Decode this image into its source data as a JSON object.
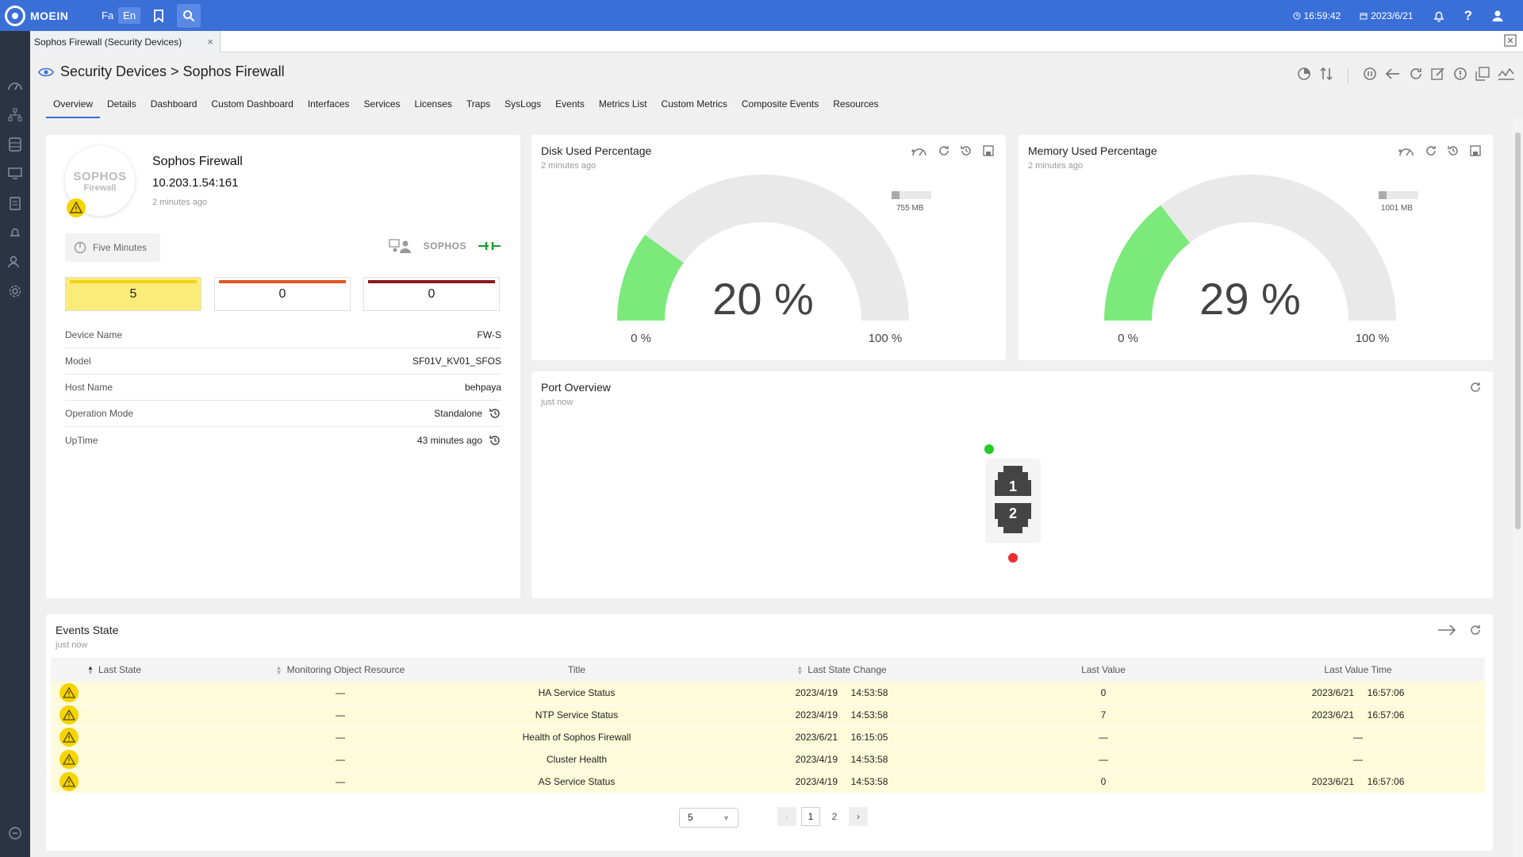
{
  "topbar": {
    "logo_text": "MOEIN",
    "lang_fa": "Fa",
    "lang_en": "En",
    "time": "16:59:42",
    "date": "2023/6/21"
  },
  "tabstrip": {
    "open_tab": "Sophos Firewall (Security Devices)"
  },
  "header": {
    "breadcrumb": "Security Devices > Sophos Firewall",
    "tabs": [
      "Overview",
      "Details",
      "Dashboard",
      "Custom Dashboard",
      "Interfaces",
      "Services",
      "Licenses",
      "Traps",
      "SysLogs",
      "Events",
      "Metrics List",
      "Custom Metrics",
      "Composite Events",
      "Resources"
    ],
    "active_tab": "Overview"
  },
  "device": {
    "logo_line1": "SOPHOS",
    "logo_line2": "Firewall",
    "name": "Sophos Firewall",
    "address": "10.203.1.54:161",
    "updated": "2 minutes ago",
    "interval": "Five Minutes",
    "vendor": "SOPHOS",
    "counters": [
      {
        "value": "5",
        "bar_color": "#f2d21a",
        "bg": "#fbeb79"
      },
      {
        "value": "0",
        "bar_color": "#e0561f",
        "bg": "#ffffff"
      },
      {
        "value": "0",
        "bar_color": "#8b1a1a",
        "bg": "#ffffff"
      }
    ],
    "properties": [
      {
        "label": "Device Name",
        "value": "FW-S"
      },
      {
        "label": "Model",
        "value": "SF01V_KV01_SFOS"
      },
      {
        "label": "Host Name",
        "value": "behpaya"
      },
      {
        "label": "Operation Mode",
        "value": "Standalone"
      },
      {
        "label": "UpTime",
        "value": "43 minutes ago"
      }
    ]
  },
  "disk": {
    "title": "Disk Used Percentage",
    "updated": "2 minutes ago",
    "value": 20,
    "value_text": "20 %",
    "min_text": "0 %",
    "max_text": "100 %",
    "legend": "755 MB",
    "legend_fill": 0.2
  },
  "memory": {
    "title": "Memory Used Percentage",
    "updated": "2 minutes ago",
    "value": 29,
    "value_text": "29 %",
    "min_text": "0 %",
    "max_text": "100 %",
    "legend": "1001 MB",
    "legend_fill": 0.2
  },
  "ports": {
    "title": "Port Overview",
    "updated": "just now",
    "port1": "1",
    "port2": "2"
  },
  "events": {
    "title": "Events State",
    "updated": "just now",
    "columns": [
      "Last State",
      "Monitoring Object Resource",
      "Title",
      "Last State Change",
      "Last Value",
      "Last Value Time"
    ],
    "rows": [
      {
        "resource": "—",
        "title": "HA Service Status",
        "change_date": "2023/4/19",
        "change_time": "14:53:58",
        "value": "0",
        "time_date": "2023/6/21",
        "time_time": "16:57:06"
      },
      {
        "resource": "—",
        "title": "NTP Service Status",
        "change_date": "2023/4/19",
        "change_time": "14:53:58",
        "value": "7",
        "time_date": "2023/6/21",
        "time_time": "16:57:06"
      },
      {
        "resource": "—",
        "title": "Health of Sophos Firewall",
        "change_date": "2023/6/21",
        "change_time": "16:15:05",
        "value": "—",
        "time_date": "—",
        "time_time": ""
      },
      {
        "resource": "—",
        "title": "Cluster Health",
        "change_date": "2023/4/19",
        "change_time": "14:53:58",
        "value": "—",
        "time_date": "—",
        "time_time": ""
      },
      {
        "resource": "—",
        "title": "AS Service Status",
        "change_date": "2023/4/19",
        "change_time": "14:53:58",
        "value": "0",
        "time_date": "2023/6/21",
        "time_time": "16:57:06"
      }
    ],
    "page_size": "5",
    "pages": [
      "1",
      "2"
    ],
    "current_page": "1"
  }
}
